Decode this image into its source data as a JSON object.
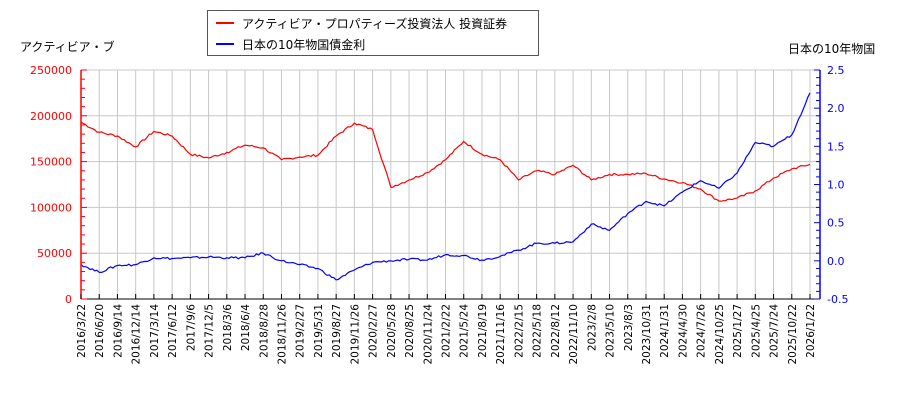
{
  "legend": {
    "items": [
      {
        "label": "アクティビア・プロパティーズ投資法人 投資証券",
        "color": "#ff0000"
      },
      {
        "label": "日本の10年物国債金利",
        "color": "#0000ff"
      }
    ]
  },
  "axes": {
    "left_title": "アクティビア・ブ",
    "right_title": "日本の10年物国",
    "left_color": "#ff0000",
    "right_color": "#0000ff",
    "grid_color": "#c8c8c8"
  },
  "chart_data": {
    "type": "line",
    "title": "",
    "xlabel": "",
    "ylabel": "アクティビア・ブ",
    "y2label": "日本の10年物国",
    "ylim": [
      0,
      250000
    ],
    "y2lim": [
      -0.5,
      2.5
    ],
    "yticks": [
      0,
      50000,
      100000,
      150000,
      200000,
      250000
    ],
    "y2ticks": [
      -0.5,
      0.0,
      0.5,
      1.0,
      1.5,
      2.0,
      2.5
    ],
    "y2tick_labels": [
      "-0.5",
      "0.0",
      "0.5",
      "1.0",
      "1.5",
      "2.0",
      "2.5"
    ],
    "grid": true,
    "legend_position": "top-center",
    "categories": [
      "2016/3/22",
      "2016/6/20",
      "2016/9/14",
      "2016/12/14",
      "2017/3/14",
      "2017/6/12",
      "2017/9/6",
      "2017/12/5",
      "2018/3/6",
      "2018/6/4",
      "2018/8/28",
      "2018/11/26",
      "2019/2/27",
      "2019/5/31",
      "2019/8/27",
      "2019/11/26",
      "2020/2/27",
      "2020/5/28",
      "2020/8/25",
      "2020/11/24",
      "2021/2/22",
      "2021/5/24",
      "2021/8/19",
      "2021/11/16",
      "2022/2/15",
      "2022/5/18",
      "2022/8/12",
      "2022/11/10",
      "2023/2/8",
      "2023/5/10",
      "2023/8/3",
      "2023/10/31",
      "2024/1/31",
      "2024/4/30",
      "2024/7/26",
      "2024/10/25",
      "2025/1/27",
      "2025/4/25",
      "2025/7/24",
      "2025/10/22",
      "2026/1/22"
    ],
    "series": [
      {
        "name": "アクティビア・プロパティーズ投資法人 投資証券",
        "axis": "left",
        "color": "#ff0000",
        "values": [
          193000,
          182000,
          178000,
          166000,
          183000,
          178000,
          158000,
          154000,
          160000,
          168000,
          165000,
          152000,
          155000,
          157000,
          178000,
          192000,
          185000,
          122000,
          130000,
          138000,
          152000,
          172000,
          158000,
          152000,
          130000,
          140000,
          136000,
          146000,
          130000,
          136000,
          136000,
          137000,
          131000,
          127000,
          120000,
          107000,
          110000,
          118000,
          132000,
          142000,
          147000
        ]
      },
      {
        "name": "日本の10年物国債金利",
        "axis": "right",
        "color": "#0000ff",
        "values": [
          -0.05,
          -0.15,
          -0.06,
          -0.05,
          0.04,
          0.03,
          0.04,
          0.05,
          0.04,
          0.04,
          0.1,
          0.0,
          -0.05,
          -0.1,
          -0.25,
          -0.12,
          -0.02,
          0.0,
          0.02,
          0.01,
          0.08,
          0.07,
          0.01,
          0.06,
          0.14,
          0.23,
          0.23,
          0.25,
          0.48,
          0.4,
          0.62,
          0.78,
          0.72,
          0.9,
          1.05,
          0.95,
          1.15,
          1.55,
          1.5,
          1.65,
          2.2
        ]
      }
    ]
  }
}
